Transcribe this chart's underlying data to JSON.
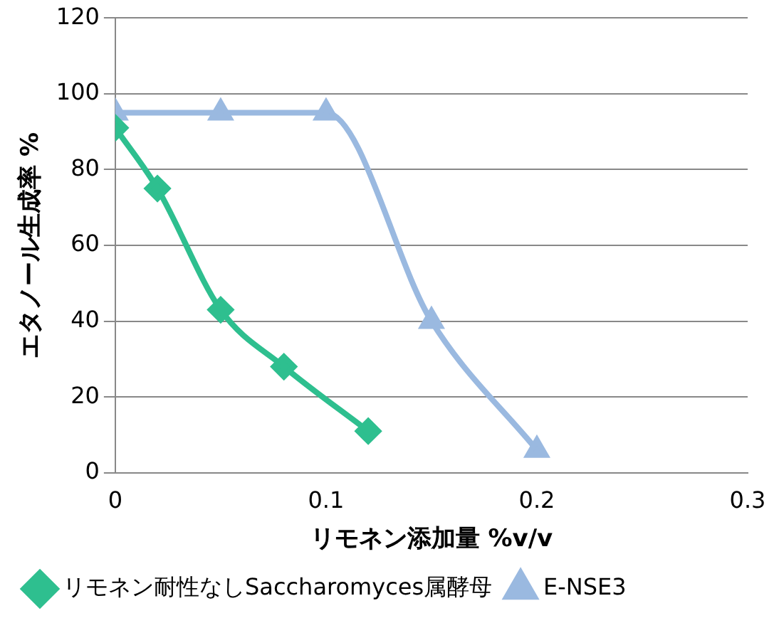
{
  "chart_data": {
    "type": "line",
    "xlabel": "リモネン添加量 %v/v",
    "ylabel": "エタノール生成率 %",
    "xlim": [
      0,
      0.3
    ],
    "xticks": [
      0,
      0.1,
      0.2,
      0.3
    ],
    "ylim": [
      0,
      120
    ],
    "yticks": [
      0,
      20,
      40,
      60,
      80,
      100,
      120
    ],
    "grid": "y",
    "legend": "bottom",
    "line_style": "solid",
    "series": [
      {
        "name": "リモネン耐性なしSaccharomyces属酵母",
        "color": "#2ebf8f",
        "marker": "diamond",
        "x": [
          0,
          0.02,
          0.05,
          0.08,
          0.12
        ],
        "values": [
          91,
          75,
          43,
          28,
          11
        ]
      },
      {
        "name": "E-NSE3",
        "color": "#9ab9e0",
        "marker": "triangle",
        "x": [
          0,
          0.05,
          0.1,
          0.15,
          0.2
        ],
        "values": [
          95,
          95,
          95,
          40,
          6
        ]
      }
    ]
  }
}
